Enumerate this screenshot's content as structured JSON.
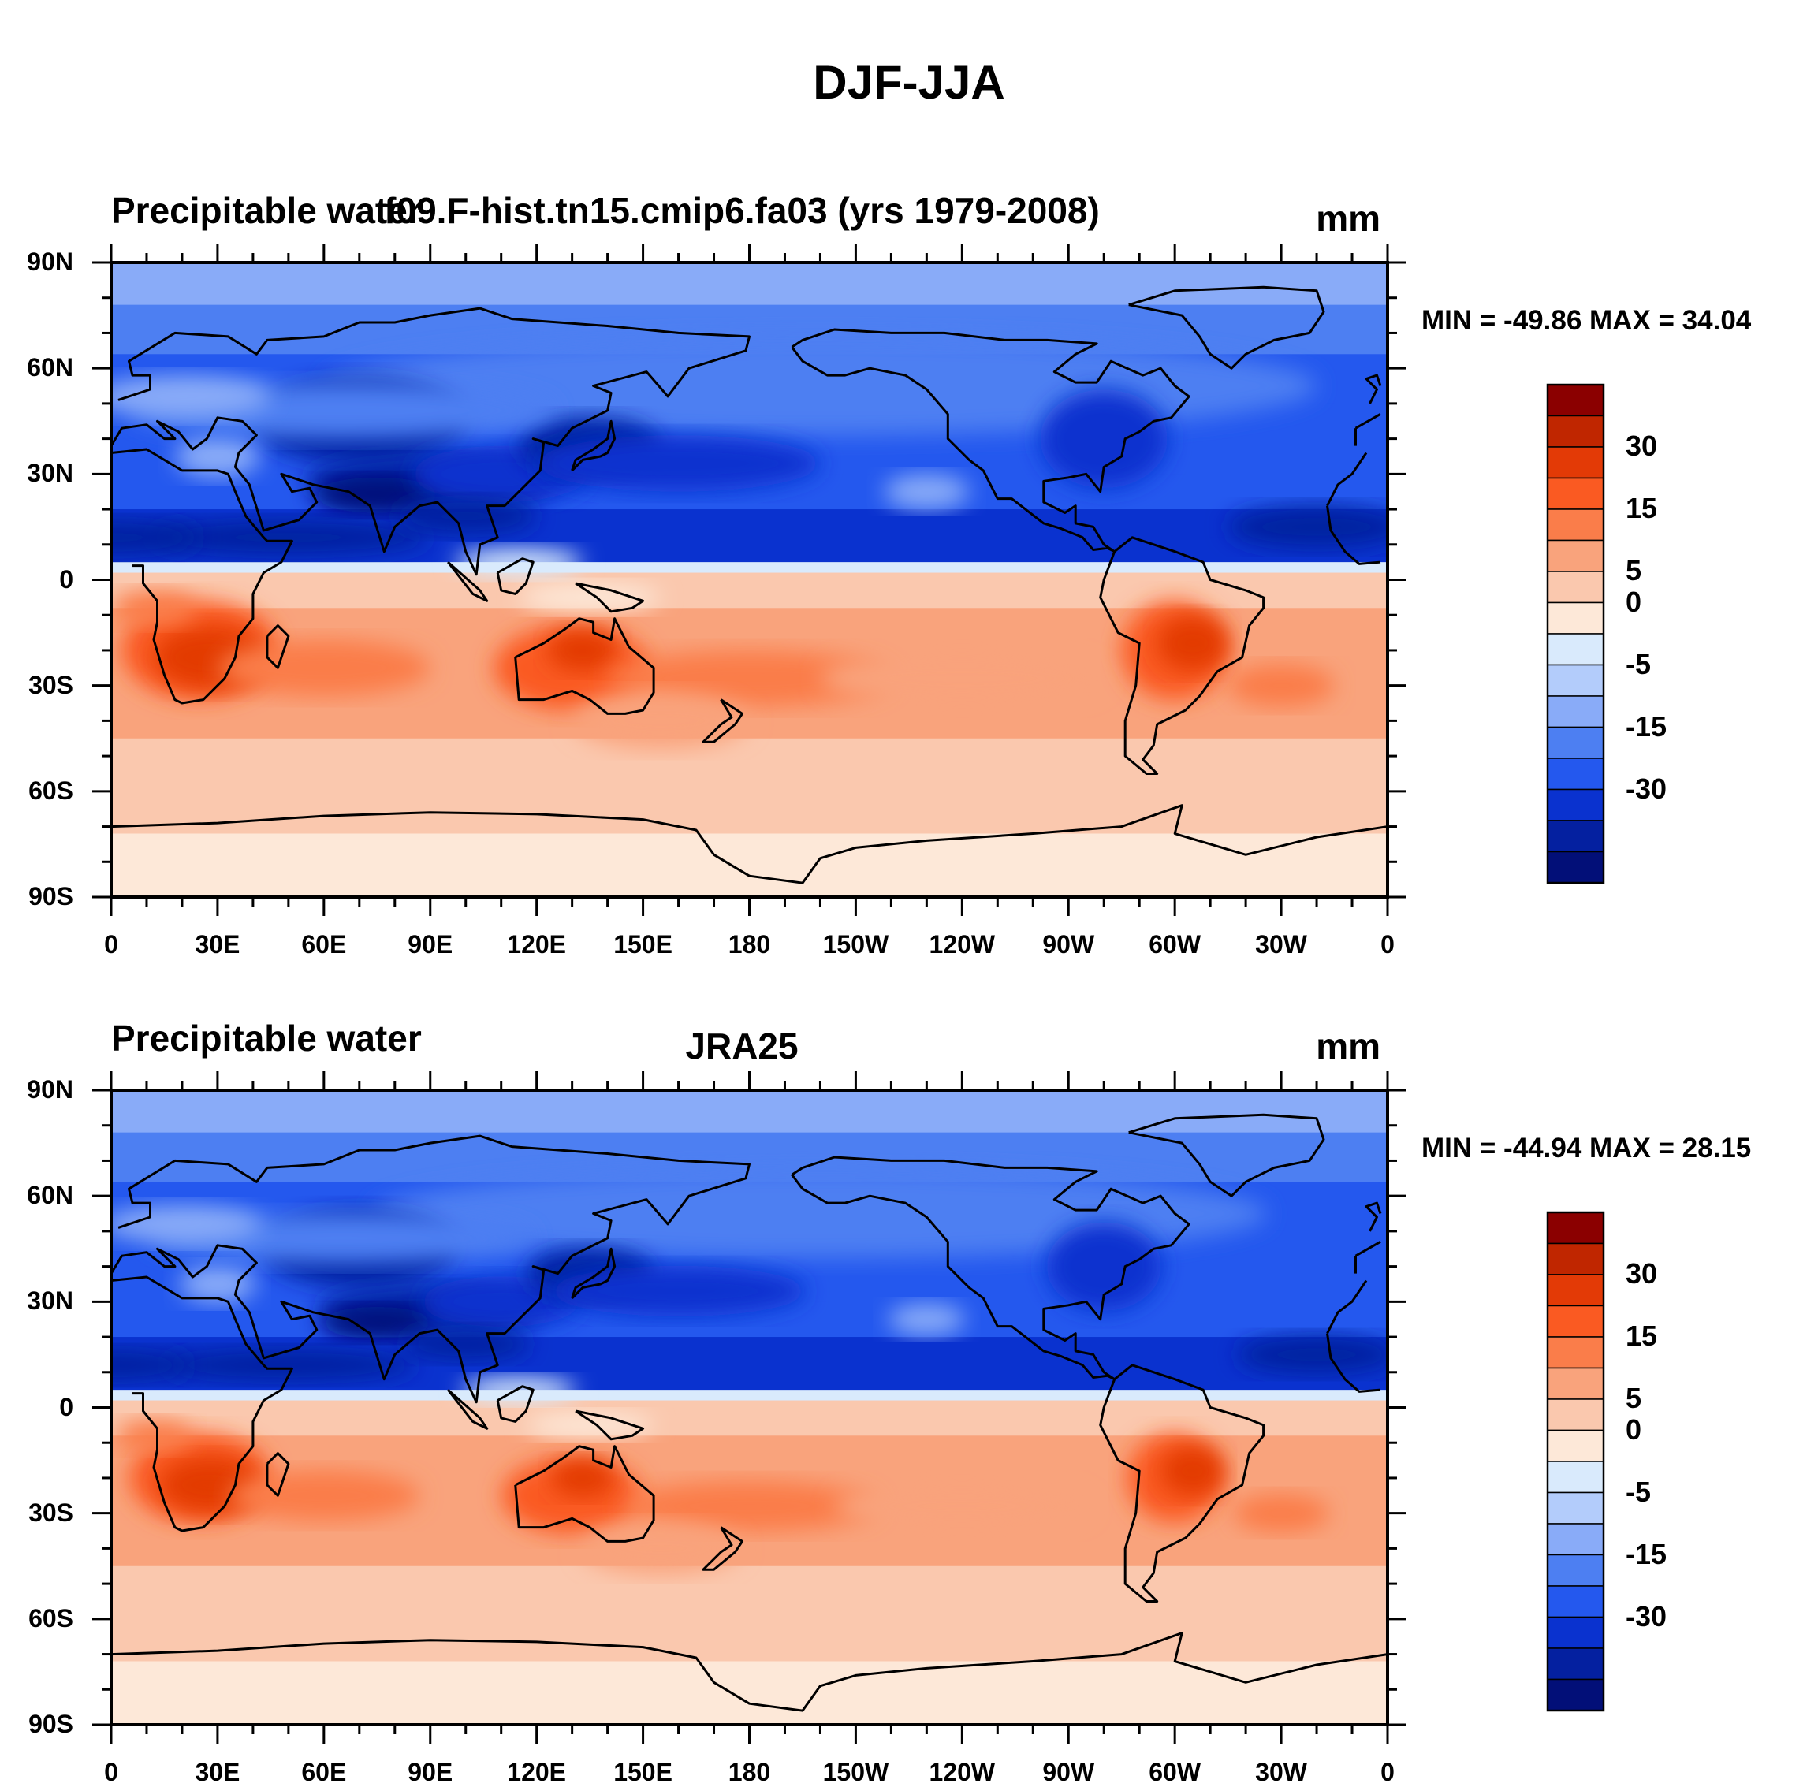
{
  "figure_title": "DJF-JJA",
  "chart_data": [
    {
      "type": "heatmap",
      "subtype": "filled-contour-map",
      "left_title": "Precipitable water",
      "center_title": "f09.F-hist.tn15.cmip6.fa03 (yrs 1979-2008)",
      "units": "mm",
      "min_max_label": "MIN = -49.86 MAX =  34.04",
      "min": -49.86,
      "max": 34.04,
      "x_ticks": [
        "0",
        "30E",
        "60E",
        "90E",
        "120E",
        "150E",
        "180",
        "150W",
        "120W",
        "90W",
        "60W",
        "30W",
        "0"
      ],
      "y_ticks": [
        "90N",
        "60N",
        "30N",
        "0",
        "30S",
        "60S",
        "90S"
      ],
      "lon_range": [
        0,
        360
      ],
      "lat_range": [
        -90,
        90
      ]
    },
    {
      "type": "heatmap",
      "subtype": "filled-contour-map",
      "left_title": "Precipitable water",
      "center_title": "JRA25",
      "units": "mm",
      "min_max_label": "MIN = -44.94 MAX =  28.15",
      "min": -44.94,
      "max": 28.15,
      "x_ticks": [
        "0",
        "30E",
        "60E",
        "90E",
        "120E",
        "150E",
        "180",
        "150W",
        "120W",
        "90W",
        "60W",
        "30W",
        "0"
      ],
      "y_ticks": [
        "90N",
        "60N",
        "30N",
        "0",
        "30S",
        "60S",
        "90S"
      ],
      "lon_range": [
        0,
        360
      ],
      "lat_range": [
        -90,
        90
      ]
    }
  ],
  "colorbar": {
    "levels": [
      -40,
      -30,
      -20,
      -15,
      -10,
      -5,
      -2,
      0,
      2,
      5,
      10,
      15,
      20,
      30,
      40
    ],
    "labels": [
      "30",
      "15",
      "5",
      "0",
      "-5",
      "-15",
      "-30"
    ],
    "colors_top_to_bottom": [
      "#8b0000",
      "#c02600",
      "#e33a06",
      "#fa5a22",
      "#fa7d4a",
      "#f9a37c",
      "#fac8ae",
      "#fde8d8",
      "#d9eafc",
      "#b3ccfb",
      "#89abf8",
      "#4d7ff2",
      "#2458ee",
      "#0a32cf",
      "#0420a0",
      "#020f78"
    ]
  }
}
